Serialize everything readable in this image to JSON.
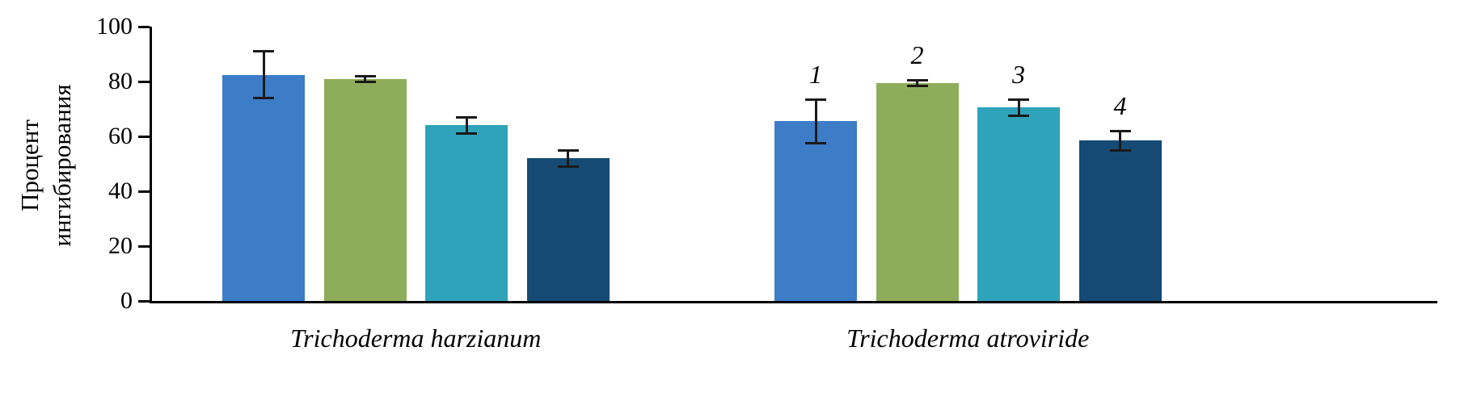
{
  "chart_data": {
    "type": "bar",
    "title": "",
    "xlabel": "",
    "ylabel": "Процент ингибирования",
    "ylabel_lines": [
      "Процент",
      "ингибирования"
    ],
    "ylim": [
      0,
      100
    ],
    "yticks": [
      "0",
      "20",
      "40",
      "60",
      "80",
      "100"
    ],
    "grid": false,
    "legend": "none",
    "bar_colors": [
      "#3d7cc7",
      "#8ead5a",
      "#2fa3ba",
      "#144a73"
    ],
    "groups": [
      {
        "label": "Trichoderma harzianum",
        "bars": [
          {
            "value": 82.5,
            "error": 8.5,
            "color": "#3d7cc7",
            "annotation": ""
          },
          {
            "value": 81,
            "error": 1,
            "color": "#8ead5a",
            "annotation": ""
          },
          {
            "value": 64,
            "error": 3,
            "color": "#2fa3ba",
            "annotation": ""
          },
          {
            "value": 52,
            "error": 3,
            "color": "#144a73",
            "annotation": ""
          }
        ]
      },
      {
        "label": "Trichoderma atroviride",
        "bars": [
          {
            "value": 65.5,
            "error": 8,
            "color": "#3d7cc7",
            "annotation": "1"
          },
          {
            "value": 79.5,
            "error": 1,
            "color": "#8ead5a",
            "annotation": "2"
          },
          {
            "value": 70.5,
            "error": 3,
            "color": "#2fa3ba",
            "annotation": "3"
          },
          {
            "value": 58.5,
            "error": 3.5,
            "color": "#144a73",
            "annotation": "4"
          }
        ]
      }
    ]
  }
}
